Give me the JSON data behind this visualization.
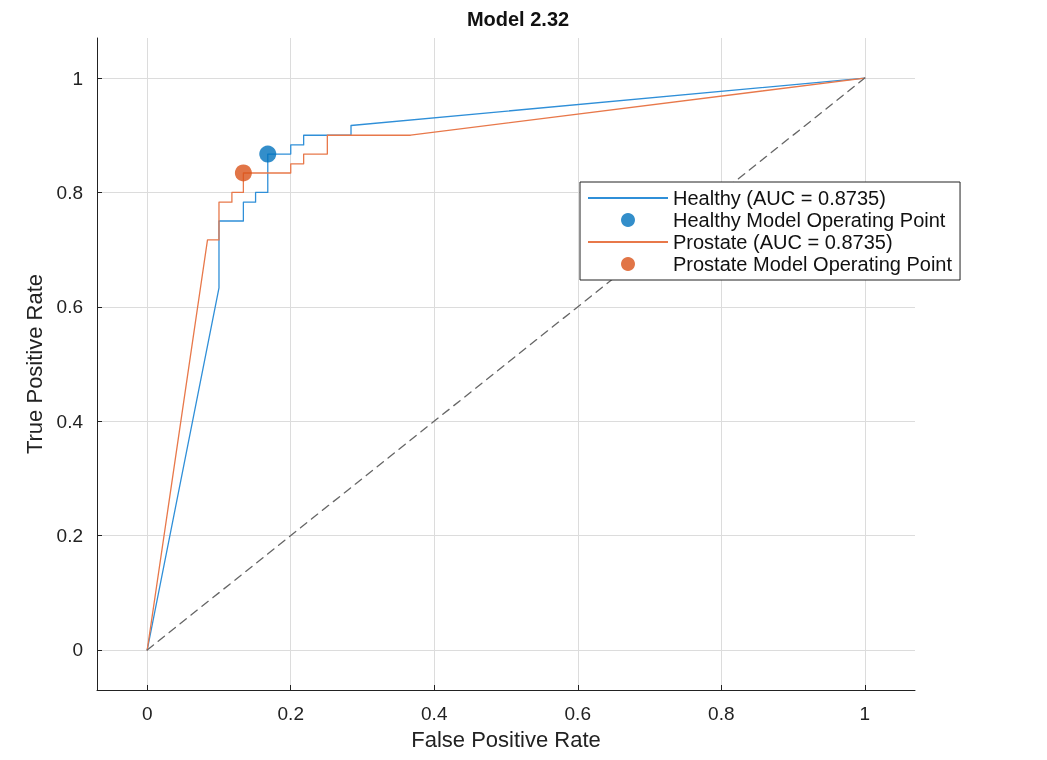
{
  "chart_data": {
    "type": "line",
    "title": "Model 2.32",
    "xlabel": "False Positive Rate",
    "ylabel": "True Positive Rate",
    "xlim": [
      -0.07,
      1.07
    ],
    "ylim": [
      -0.07,
      1.07
    ],
    "xticks": [
      0,
      0.2,
      0.4,
      0.6,
      0.8,
      1
    ],
    "yticks": [
      0,
      0.2,
      0.4,
      0.6,
      0.8,
      1
    ],
    "grid": true,
    "legend": "right",
    "marker": "none",
    "series": [
      {
        "name": "Healthy (AUC = 0.8735)",
        "type": "line",
        "color": "#2f8fd8",
        "x": [
          0,
          0.1,
          0.1,
          0.134,
          0.134,
          0.151,
          0.151,
          0.168,
          0.168,
          0.2,
          0.2,
          0.218,
          0.218,
          0.284,
          0.284,
          1
        ],
        "values": [
          0,
          0.633,
          0.75,
          0.75,
          0.783,
          0.783,
          0.8,
          0.8,
          0.867,
          0.867,
          0.883,
          0.883,
          0.9,
          0.9,
          0.917,
          1
        ]
      },
      {
        "name": "Healthy Model Operating Point",
        "type": "scatter",
        "marker": "circle",
        "color": "#0072bd",
        "x": [
          0.168
        ],
        "values": [
          0.867
        ]
      },
      {
        "name": "Prostate (AUC = 0.8735)",
        "type": "line",
        "color": "#e8784a",
        "x": [
          0,
          0.084,
          0.1,
          0.1,
          0.118,
          0.118,
          0.134,
          0.134,
          0.2,
          0.2,
          0.218,
          0.218,
          0.251,
          0.251,
          0.367,
          1
        ],
        "values": [
          0,
          0.717,
          0.717,
          0.783,
          0.783,
          0.8,
          0.8,
          0.834,
          0.834,
          0.85,
          0.85,
          0.867,
          0.867,
          0.9,
          0.9,
          1
        ]
      },
      {
        "name": "Prostate Model Operating Point",
        "type": "scatter",
        "marker": "circle",
        "color": "#d95319",
        "x": [
          0.134
        ],
        "values": [
          0.834
        ]
      },
      {
        "type": "line",
        "color": "#666666",
        "line_style": "dashed",
        "x": [
          0,
          1
        ],
        "values": [
          0,
          1
        ]
      }
    ]
  }
}
